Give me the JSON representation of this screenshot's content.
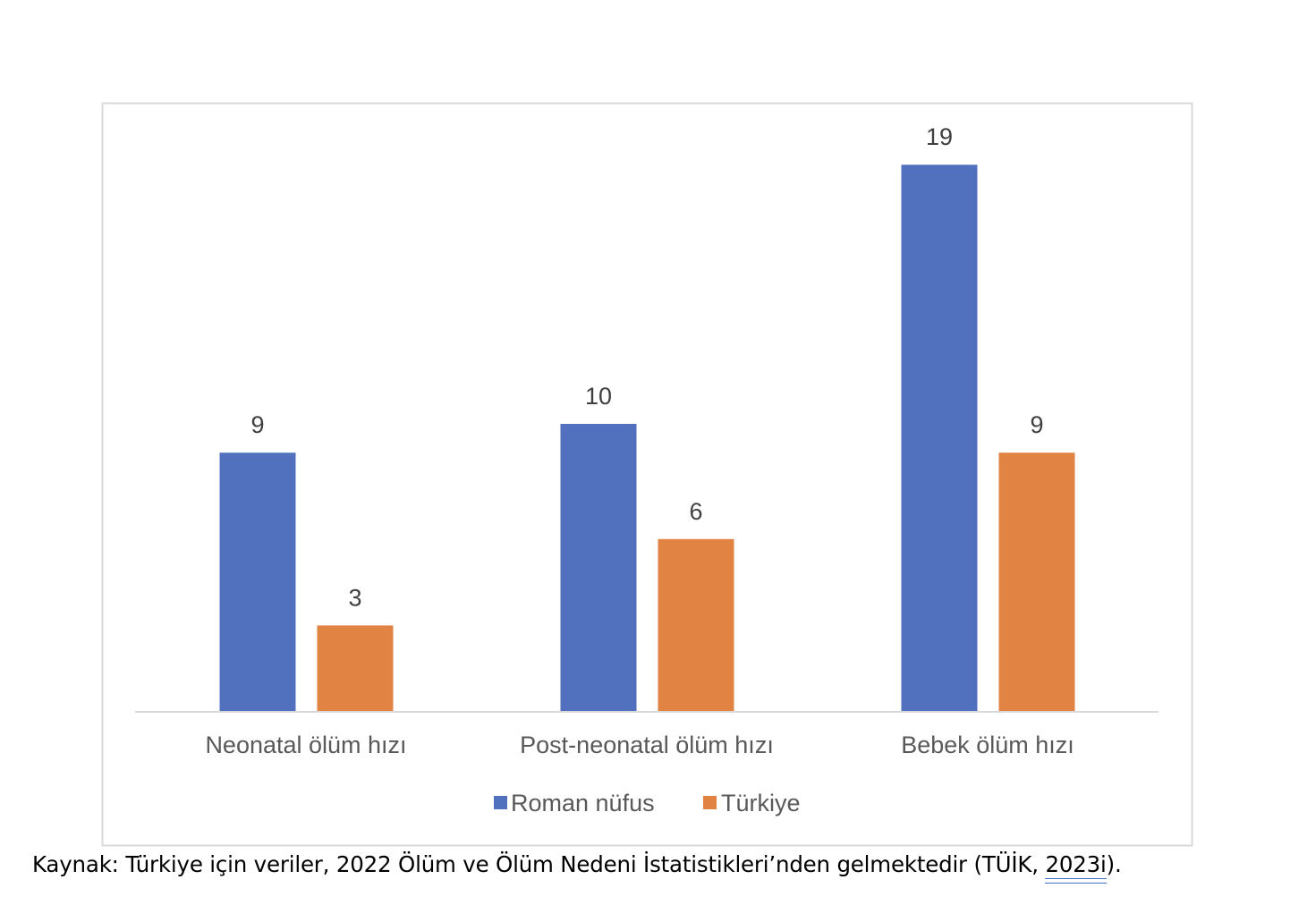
{
  "chart_data": {
    "type": "bar",
    "categories": [
      "Neonatal ölüm hızı",
      "Post-neonatal ölüm hızı",
      "Bebek ölüm hızı"
    ],
    "series": [
      {
        "name": "Roman nüfus",
        "values": [
          9,
          10,
          19
        ],
        "color": "#5171be"
      },
      {
        "name": "Türkiye",
        "values": [
          3,
          6,
          9
        ],
        "color": "#e08343"
      }
    ],
    "data_labels": true,
    "legend_position": "bottom",
    "grid": false,
    "ylim": [
      0,
      20
    ]
  },
  "caption": {
    "prefix": "Kaynak: Türkiye için veriler, 2022 Ölüm ve Ölüm Nedeni İstatistikleri’nden gelmektedir (TÜİK, ",
    "year": "2023i",
    "suffix": ")."
  }
}
